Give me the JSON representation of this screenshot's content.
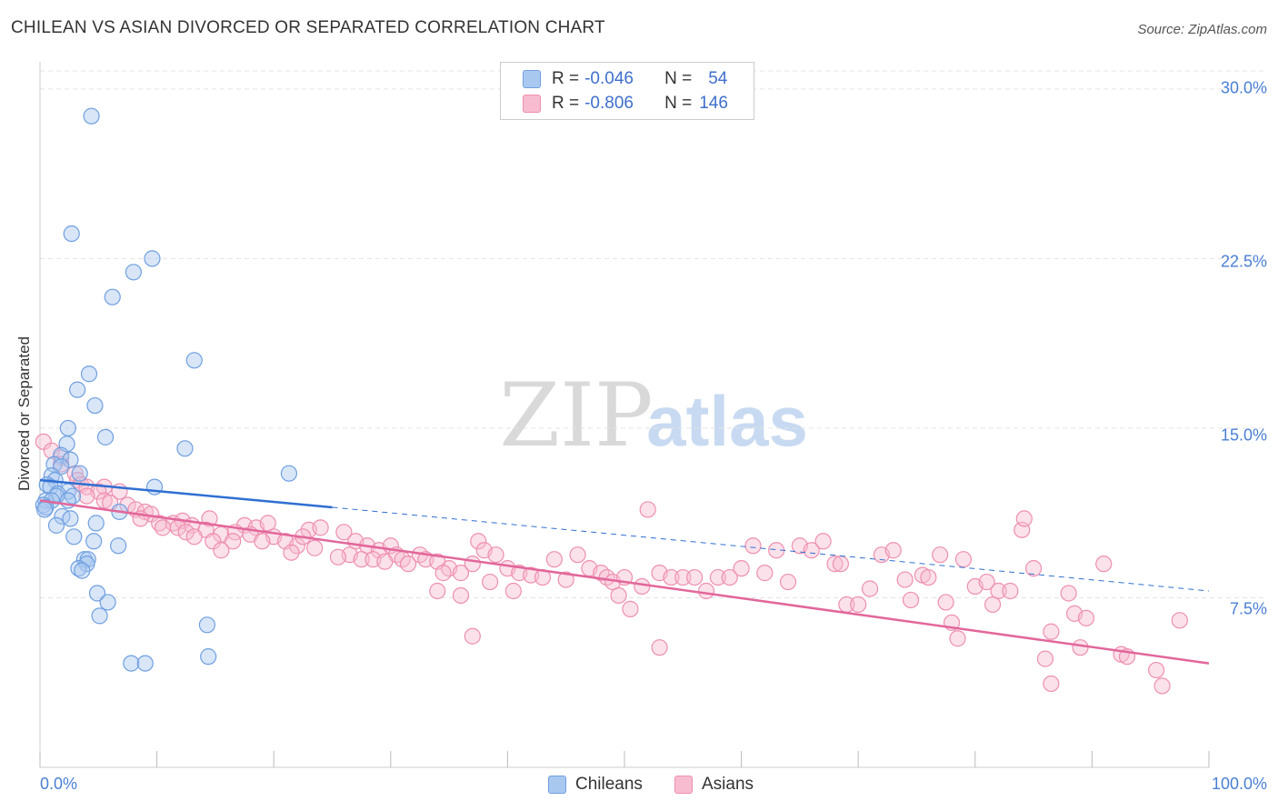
{
  "header": {
    "title": "CHILEAN VS ASIAN DIVORCED OR SEPARATED CORRELATION CHART",
    "source": "Source: ZipAtlas.com"
  },
  "watermark": {
    "zip": "ZIP",
    "atlas": "atlas"
  },
  "legend": {
    "chileans": {
      "r_label": "R =",
      "r_value": "-0.046",
      "n_label": "N =",
      "n_value": "54"
    },
    "asians": {
      "r_label": "R =",
      "r_value": "-0.806",
      "n_label": "N =",
      "n_value": "146"
    }
  },
  "bottom_legend": {
    "chileans": "Chileans",
    "asians": "Asians"
  },
  "colors": {
    "chileans_fill": "#a9c8f0",
    "chileans_stroke": "#6f9fe0",
    "chileans_line": "#2f6fd2",
    "asians_fill": "#f7bcd0",
    "asians_stroke": "#ee8fb0",
    "asians_line": "#e2679a",
    "tick_text": "#4a7fd4",
    "grid": "#e3e3e3"
  },
  "chart_data": {
    "type": "scatter",
    "title": "CHILEAN VS ASIAN DIVORCED OR SEPARATED CORRELATION CHART",
    "xlabel": "",
    "ylabel": "Divorced or Separated",
    "x_ticks": [
      "0.0%",
      "100.0%"
    ],
    "y_ticks": [
      "7.5%",
      "15.0%",
      "22.5%",
      "30.0%"
    ],
    "xlim": [
      0,
      100
    ],
    "ylim": [
      0,
      31.2
    ],
    "grid": "horizontal dashed",
    "legend_position": "top-center",
    "series": [
      {
        "name": "Chileans",
        "R": -0.046,
        "N": 54,
        "trend": {
          "x": [
            0,
            25
          ],
          "y": [
            12.7,
            11.5
          ]
        },
        "trend_extended": {
          "x": [
            25,
            100
          ],
          "y": [
            11.5,
            7.8
          ]
        },
        "points": [
          [
            4.4,
            28.8
          ],
          [
            2.7,
            23.6
          ],
          [
            9.6,
            22.5
          ],
          [
            8.0,
            21.9
          ],
          [
            6.2,
            20.8
          ],
          [
            13.2,
            18.0
          ],
          [
            4.2,
            17.4
          ],
          [
            3.2,
            16.7
          ],
          [
            4.7,
            16.0
          ],
          [
            2.4,
            15.0
          ],
          [
            5.6,
            14.6
          ],
          [
            12.4,
            14.1
          ],
          [
            2.3,
            14.3
          ],
          [
            1.8,
            13.8
          ],
          [
            2.6,
            13.6
          ],
          [
            1.2,
            13.4
          ],
          [
            1.8,
            13.3
          ],
          [
            3.4,
            13.0
          ],
          [
            1.0,
            12.9
          ],
          [
            1.3,
            12.7
          ],
          [
            0.6,
            12.5
          ],
          [
            0.9,
            12.4
          ],
          [
            2.4,
            12.2
          ],
          [
            1.5,
            12.1
          ],
          [
            1.4,
            12.0
          ],
          [
            2.8,
            12.0
          ],
          [
            0.5,
            11.8
          ],
          [
            1.0,
            11.8
          ],
          [
            2.4,
            11.8
          ],
          [
            0.3,
            11.6
          ],
          [
            0.5,
            11.5
          ],
          [
            0.4,
            11.4
          ],
          [
            9.8,
            12.4
          ],
          [
            21.3,
            13.0
          ],
          [
            6.8,
            11.3
          ],
          [
            1.9,
            11.1
          ],
          [
            2.6,
            11.0
          ],
          [
            1.4,
            10.7
          ],
          [
            4.8,
            10.8
          ],
          [
            2.9,
            10.2
          ],
          [
            4.6,
            10.0
          ],
          [
            6.7,
            9.8
          ],
          [
            3.8,
            9.2
          ],
          [
            4.1,
            9.2
          ],
          [
            4.0,
            9.0
          ],
          [
            3.3,
            8.8
          ],
          [
            3.6,
            8.7
          ],
          [
            4.9,
            7.7
          ],
          [
            5.8,
            7.3
          ],
          [
            5.1,
            6.7
          ],
          [
            14.3,
            6.3
          ],
          [
            14.4,
            4.9
          ],
          [
            7.8,
            4.6
          ],
          [
            9.0,
            4.6
          ]
        ]
      },
      {
        "name": "Asians",
        "R": -0.806,
        "N": 146,
        "trend": {
          "x": [
            0,
            100
          ],
          "y": [
            11.8,
            4.6
          ]
        },
        "points": [
          [
            0.3,
            14.4
          ],
          [
            1.0,
            14.0
          ],
          [
            1.8,
            13.7
          ],
          [
            1.8,
            13.4
          ],
          [
            3.0,
            13.0
          ],
          [
            3.2,
            12.7
          ],
          [
            3.5,
            12.5
          ],
          [
            4.0,
            12.4
          ],
          [
            5.5,
            12.4
          ],
          [
            5.0,
            12.2
          ],
          [
            4.0,
            12.0
          ],
          [
            6.8,
            12.2
          ],
          [
            5.5,
            11.8
          ],
          [
            6.0,
            11.7
          ],
          [
            7.5,
            11.6
          ],
          [
            8.2,
            11.4
          ],
          [
            9.0,
            11.3
          ],
          [
            9.5,
            11.2
          ],
          [
            8.6,
            11.0
          ],
          [
            10.2,
            10.8
          ],
          [
            11.4,
            10.8
          ],
          [
            12.2,
            10.9
          ],
          [
            10.5,
            10.6
          ],
          [
            11.8,
            10.6
          ],
          [
            13.0,
            10.7
          ],
          [
            14.5,
            11.0
          ],
          [
            14.2,
            10.5
          ],
          [
            12.5,
            10.4
          ],
          [
            15.5,
            10.3
          ],
          [
            13.2,
            10.2
          ],
          [
            17.5,
            10.7
          ],
          [
            18.5,
            10.6
          ],
          [
            19.5,
            10.8
          ],
          [
            16.7,
            10.4
          ],
          [
            18.0,
            10.3
          ],
          [
            20.0,
            10.2
          ],
          [
            14.8,
            10.0
          ],
          [
            16.5,
            10.0
          ],
          [
            19.0,
            10.0
          ],
          [
            21.0,
            10.0
          ],
          [
            22.0,
            9.8
          ],
          [
            23.0,
            10.5
          ],
          [
            24.0,
            10.6
          ],
          [
            22.5,
            10.2
          ],
          [
            23.5,
            9.7
          ],
          [
            15.5,
            9.6
          ],
          [
            21.5,
            9.5
          ],
          [
            26.0,
            10.4
          ],
          [
            27.0,
            10.0
          ],
          [
            28.0,
            9.8
          ],
          [
            29.0,
            9.6
          ],
          [
            26.5,
            9.4
          ],
          [
            25.5,
            9.3
          ],
          [
            27.5,
            9.2
          ],
          [
            28.5,
            9.2
          ],
          [
            30.0,
            9.8
          ],
          [
            30.5,
            9.4
          ],
          [
            31.0,
            9.2
          ],
          [
            29.5,
            9.1
          ],
          [
            31.5,
            9.0
          ],
          [
            32.5,
            9.4
          ],
          [
            33.0,
            9.2
          ],
          [
            34.0,
            9.1
          ],
          [
            35.0,
            8.8
          ],
          [
            34.5,
            8.6
          ],
          [
            36.0,
            8.6
          ],
          [
            37.0,
            9.0
          ],
          [
            37.5,
            10.0
          ],
          [
            38.0,
            9.6
          ],
          [
            39.0,
            9.4
          ],
          [
            40.0,
            8.8
          ],
          [
            41.0,
            8.6
          ],
          [
            42.0,
            8.5
          ],
          [
            38.5,
            8.2
          ],
          [
            40.5,
            7.8
          ],
          [
            43.0,
            8.4
          ],
          [
            45.0,
            8.3
          ],
          [
            44.0,
            9.2
          ],
          [
            46.0,
            9.4
          ],
          [
            47.0,
            8.8
          ],
          [
            48.0,
            8.6
          ],
          [
            48.5,
            8.4
          ],
          [
            49.0,
            8.2
          ],
          [
            49.5,
            7.6
          ],
          [
            50.0,
            8.4
          ],
          [
            50.5,
            7.0
          ],
          [
            51.5,
            8.0
          ],
          [
            52.0,
            11.4
          ],
          [
            53.0,
            8.6
          ],
          [
            54.0,
            8.4
          ],
          [
            55.0,
            8.4
          ],
          [
            56.0,
            8.4
          ],
          [
            57.0,
            7.8
          ],
          [
            58.0,
            8.4
          ],
          [
            59.0,
            8.4
          ],
          [
            60.0,
            8.8
          ],
          [
            61.0,
            9.8
          ],
          [
            62.0,
            8.6
          ],
          [
            63.0,
            9.6
          ],
          [
            64.0,
            8.2
          ],
          [
            65.0,
            9.8
          ],
          [
            66.0,
            9.6
          ],
          [
            67.0,
            10.0
          ],
          [
            68.0,
            9.0
          ],
          [
            68.5,
            9.0
          ],
          [
            69.0,
            7.2
          ],
          [
            70.0,
            7.2
          ],
          [
            71.0,
            7.9
          ],
          [
            72.0,
            9.4
          ],
          [
            73.0,
            9.6
          ],
          [
            74.0,
            8.3
          ],
          [
            74.5,
            7.4
          ],
          [
            75.5,
            8.5
          ],
          [
            76.0,
            8.4
          ],
          [
            77.0,
            9.4
          ],
          [
            77.5,
            7.3
          ],
          [
            78.0,
            6.4
          ],
          [
            78.5,
            5.7
          ],
          [
            79.0,
            9.2
          ],
          [
            80.0,
            8.0
          ],
          [
            81.0,
            8.2
          ],
          [
            81.5,
            7.2
          ],
          [
            82.0,
            7.8
          ],
          [
            83.0,
            7.8
          ],
          [
            84.0,
            10.5
          ],
          [
            84.2,
            11.0
          ],
          [
            85.0,
            8.8
          ],
          [
            86.0,
            4.8
          ],
          [
            86.5,
            6.0
          ],
          [
            88.0,
            7.7
          ],
          [
            88.5,
            6.8
          ],
          [
            89.5,
            6.6
          ],
          [
            89.0,
            5.3
          ],
          [
            91.0,
            9.0
          ],
          [
            92.5,
            5.0
          ],
          [
            93.0,
            4.9
          ],
          [
            95.5,
            4.3
          ],
          [
            96.0,
            3.6
          ],
          [
            86.5,
            3.7
          ],
          [
            97.5,
            6.5
          ],
          [
            37.0,
            5.8
          ],
          [
            53.0,
            5.3
          ],
          [
            36.0,
            7.6
          ],
          [
            34.0,
            7.8
          ]
        ]
      }
    ]
  }
}
